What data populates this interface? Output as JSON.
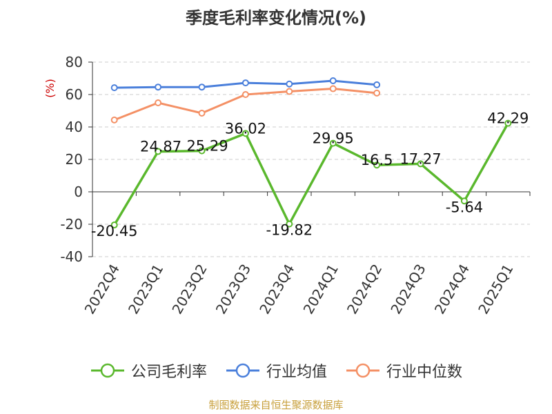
{
  "chart_data": {
    "type": "line",
    "title": "季度毛利率变化情况(%)",
    "ylabel": "(%)",
    "xlabel": "",
    "ylim": [
      -40,
      80
    ],
    "yticks": [
      -40,
      -20,
      0,
      20,
      40,
      60,
      80
    ],
    "grid": true,
    "legend_position": "bottom",
    "categories": [
      "2022Q4",
      "2023Q1",
      "2023Q2",
      "2023Q3",
      "2023Q4",
      "2024Q1",
      "2024Q2",
      "2024Q3",
      "2024Q4",
      "2025Q1"
    ],
    "series": [
      {
        "name": "公司毛利率",
        "color": "#5ab82d",
        "values": [
          -20.45,
          24.87,
          25.29,
          36.02,
          -19.82,
          29.95,
          16.5,
          17.27,
          -5.64,
          42.29
        ],
        "labels": [
          "-20.45",
          "24.87",
          "25.29",
          "36.02",
          "-19.82",
          "29.95",
          "16.5",
          "17.27",
          "-5.64",
          "42.29"
        ]
      },
      {
        "name": "行业均值",
        "color": "#4a7fdb",
        "values": [
          64.2,
          64.6,
          64.6,
          67.2,
          66.5,
          68.5,
          66.0,
          null,
          null,
          null
        ]
      },
      {
        "name": "行业中位数",
        "color": "#f49065",
        "values": [
          44.3,
          54.9,
          48.5,
          60.0,
          61.9,
          63.6,
          60.9,
          null,
          null,
          null
        ]
      }
    ]
  },
  "source": "制图数据来自恒生聚源数据库"
}
